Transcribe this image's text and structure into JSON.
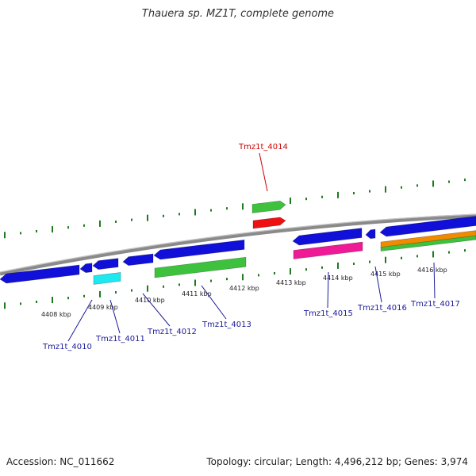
{
  "title": "Thauera sp. MZ1T, complete genome",
  "footer": {
    "accession": "Accession: NC_011662",
    "summary": "Topology: circular; Length: 4,496,212 bp; Genes: 3,974"
  },
  "colors": {
    "backbone": "#8a8a8a",
    "tick": "#1f7a1f",
    "label_normal": "#1b1b9a",
    "label_highlight": "#cc0000",
    "blue": "#1010d8",
    "green": "#3ec23e",
    "cyan": "#1ee8f0",
    "red": "#ee1111",
    "magenta": "#ee1a96",
    "orange": "#f08a00"
  },
  "scale_labels": [
    "4408 kbp",
    "4409 kbp",
    "4410 kbp",
    "4411 kbp",
    "4412 kbp",
    "4413 kbp",
    "4414 kbp",
    "4415 kbp",
    "4416 kbp"
  ],
  "genes": [
    {
      "label": "Tmz1t_4010",
      "highlight": false
    },
    {
      "label": "Tmz1t_4011",
      "highlight": false
    },
    {
      "label": "Tmz1t_4012",
      "highlight": false
    },
    {
      "label": "Tmz1t_4013",
      "highlight": false
    },
    {
      "label": "Tmz1t_4014",
      "highlight": true
    },
    {
      "label": "Tmz1t_4015",
      "highlight": false
    },
    {
      "label": "Tmz1t_4016",
      "highlight": false
    },
    {
      "label": "Tmz1t_4017",
      "highlight": false
    }
  ]
}
